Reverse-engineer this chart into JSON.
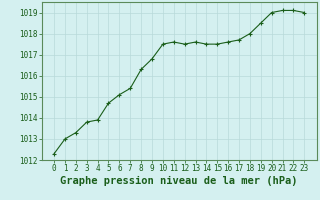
{
  "x": [
    0,
    1,
    2,
    3,
    4,
    5,
    6,
    7,
    8,
    9,
    10,
    11,
    12,
    13,
    14,
    15,
    16,
    17,
    18,
    19,
    20,
    21,
    22,
    23
  ],
  "y": [
    1012.3,
    1013.0,
    1013.3,
    1013.8,
    1013.9,
    1014.7,
    1015.1,
    1015.4,
    1016.3,
    1016.8,
    1017.5,
    1017.6,
    1017.5,
    1017.6,
    1017.5,
    1017.5,
    1017.6,
    1017.7,
    1018.0,
    1018.5,
    1019.0,
    1019.1,
    1019.1,
    1019.0
  ],
  "line_color": "#1a5e1a",
  "marker": "+",
  "background_color": "#d4f0f0",
  "grid_color": "#b8dada",
  "xlabel": "Graphe pression niveau de la mer (hPa)",
  "xlabel_fontsize": 7.5,
  "xlabel_color": "#1a5e1a",
  "xlabel_bold": true,
  "ylim": [
    1012,
    1019.5
  ],
  "yticks": [
    1012,
    1013,
    1014,
    1015,
    1016,
    1017,
    1018,
    1019
  ],
  "xticks": [
    0,
    1,
    2,
    3,
    4,
    5,
    6,
    7,
    8,
    9,
    10,
    11,
    12,
    13,
    14,
    15,
    16,
    17,
    18,
    19,
    20,
    21,
    22,
    23
  ],
  "tick_fontsize": 5.5,
  "tick_color": "#1a5e1a",
  "spine_color": "#5a8a5a",
  "line_width": 0.8,
  "marker_size": 3.5
}
